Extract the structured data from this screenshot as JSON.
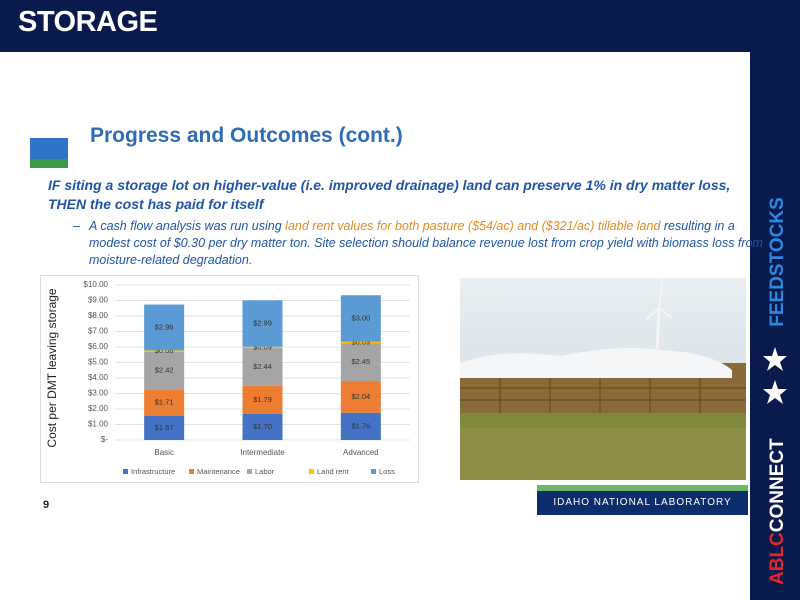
{
  "header": {
    "title": "STORAGE"
  },
  "slide": {
    "title": "Progress and Outcomes (cont.)",
    "lead": "IF siting a storage lot on higher-value (i.e. improved drainage) land can preserve 1% in dry matter loss, THEN the cost has paid for itself",
    "bullet": [
      "A cash flow analysis was run using",
      "land rent values for both pasture ($54/ac) and ($321/ac) tillable land",
      "resulting in a modest cost of $0.30 per dry matter ton. Site selection should balance revenue lost from crop yield with biomass loss from moisture-related degradation."
    ],
    "page_number": "9"
  },
  "footer": {
    "lab": "IDAHO NATIONAL LABORATORY"
  },
  "sidebar": {
    "section": "FEEDSTOCKS",
    "brand_a": "ABLC",
    "brand_b": "CONNECT"
  },
  "chart_data": {
    "type": "stacked-bar",
    "y_label": "Cost per DMT leaving storage",
    "categories": [
      "Basic",
      "Intermediate",
      "Advanced"
    ],
    "series": [
      {
        "name": "Infrastructure",
        "color": "#4472c4",
        "values": [
          1.57,
          1.7,
          1.76
        ],
        "value_labels": [
          "$1.57",
          "$1.70",
          "$1.76"
        ]
      },
      {
        "name": "Maintenance",
        "color": "#ed7d31",
        "values": [
          1.71,
          1.79,
          2.04
        ],
        "value_labels": [
          "$1.71",
          "$1.79",
          "$2.04"
        ]
      },
      {
        "name": "Labor",
        "color": "#a5a5a5",
        "values": [
          2.42,
          2.44,
          2.45
        ],
        "value_labels": [
          "$2.42",
          "$2.44",
          "$2.45"
        ]
      },
      {
        "name": "Land rent",
        "color": "#ffc000",
        "values": [
          0.08,
          0.09,
          0.09
        ],
        "value_labels": [
          "$0.08",
          "$0.09",
          "$0.09"
        ]
      },
      {
        "name": "Loss",
        "color": "#5b9bd5",
        "values": [
          2.96,
          2.99,
          3.0
        ],
        "value_labels": [
          "$2.96",
          "$2.99",
          "$3.00"
        ]
      }
    ],
    "ylim": [
      0,
      10
    ],
    "yticks": [
      {
        "value": 0,
        "label": "$-"
      },
      {
        "value": 1,
        "label": "$1.00"
      },
      {
        "value": 2,
        "label": "$2.00"
      },
      {
        "value": 3,
        "label": "$3.00"
      },
      {
        "value": 4,
        "label": "$4.00"
      },
      {
        "value": 5,
        "label": "$5.00"
      },
      {
        "value": 6,
        "label": "$6.00"
      },
      {
        "value": 7,
        "label": "$7.00"
      },
      {
        "value": 8,
        "label": "$8.00"
      },
      {
        "value": 9,
        "label": "$9.00"
      },
      {
        "value": 10,
        "label": "$10.00"
      }
    ],
    "grid": true
  }
}
